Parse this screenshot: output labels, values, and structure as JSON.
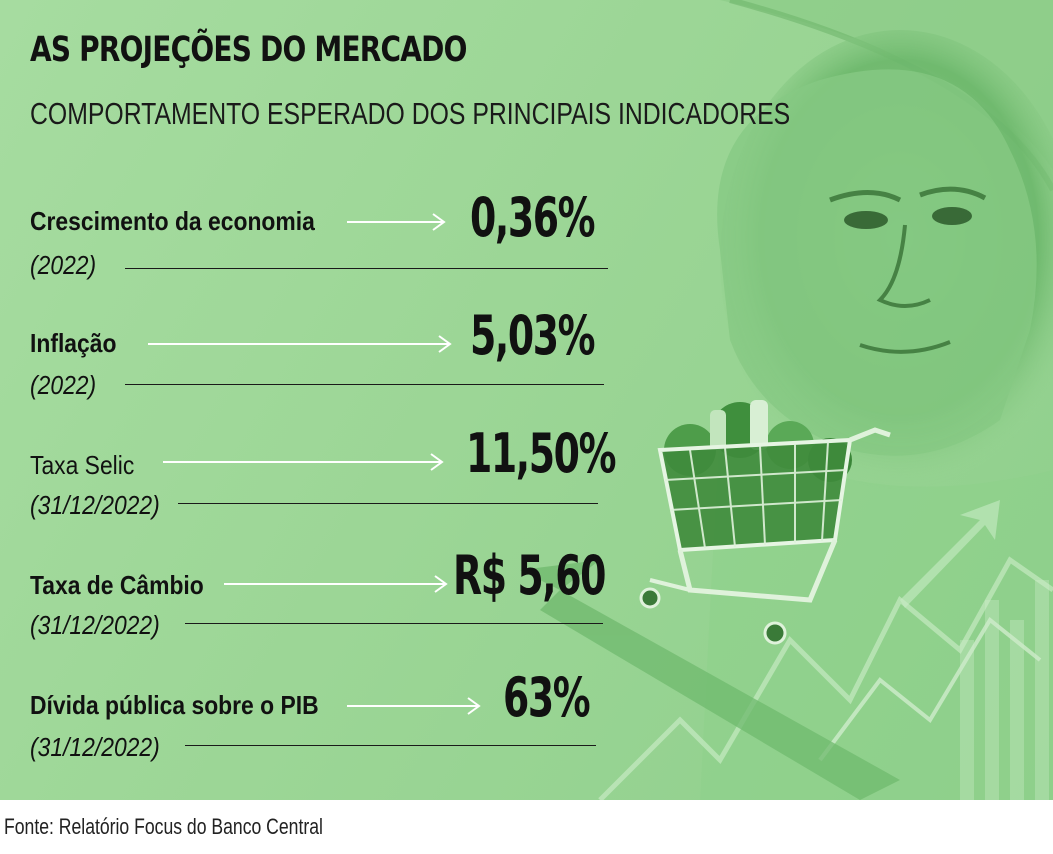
{
  "header": {
    "title": "AS PROJEÇÕES DO MERCADO",
    "subtitle": "COMPORTAMENTO ESPERADO DOS PRINCIPAIS INDICADORES"
  },
  "indicators": [
    {
      "label": "Crescimento da economia",
      "period": "(2022)",
      "value": "0,36%"
    },
    {
      "label": "Inflação",
      "period": "(2022)",
      "value": "5,03%"
    },
    {
      "label": "Taxa Selic",
      "period": "(31/12/2022)",
      "value": "11,50%"
    },
    {
      "label": "Taxa de Câmbio",
      "period": "(31/12/2022)",
      "value": "R$ 5,60"
    },
    {
      "label": "Dívida pública sobre o PIB",
      "period": "(31/12/2022)",
      "value": "63%"
    }
  ],
  "footer": {
    "source": "Fonte: Relatório Focus do Banco Central"
  },
  "colors": {
    "background": "#9cd696",
    "text": "#111111",
    "arrow": "#ffffff"
  },
  "icons": [
    "banknote-portrait-illustration",
    "shopping-cart-illustration",
    "rising-arrow-icon"
  ]
}
